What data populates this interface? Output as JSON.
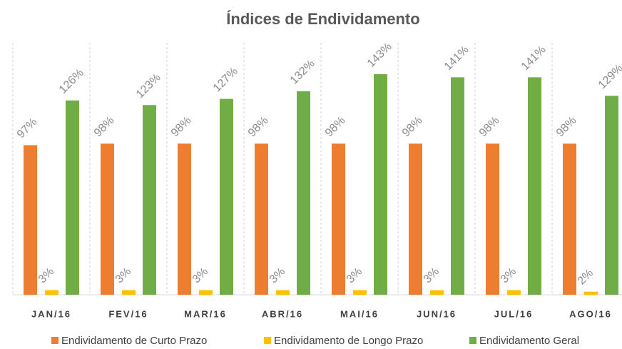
{
  "chart_data": {
    "type": "bar",
    "title": "Índices de Endividamento",
    "categories": [
      "JAN/16",
      "FEV/16",
      "MAR/16",
      "ABR/16",
      "MAI/16",
      "JUN/16",
      "JUL/16",
      "AGO/16"
    ],
    "series": [
      {
        "name": "Endividamento de Curto Prazo",
        "color": "#ed7d31",
        "values": [
          97,
          98,
          98,
          98,
          98,
          98,
          98,
          98
        ],
        "value_labels": [
          "97%",
          "98%",
          "98%",
          "98%",
          "98%",
          "98%",
          "98%",
          "98%"
        ]
      },
      {
        "name": "Endividamento de Longo Prazo",
        "color": "#ffc000",
        "values": [
          3,
          3,
          3,
          3,
          3,
          3,
          3,
          2
        ],
        "value_labels": [
          "3%",
          "3%",
          "3%",
          "3%",
          "3%",
          "3%",
          "3%",
          "2%"
        ]
      },
      {
        "name": "Endividamento Geral",
        "color": "#70ad47",
        "values": [
          126,
          123,
          127,
          132,
          143,
          141,
          141,
          129
        ],
        "value_labels": [
          "126%",
          "123%",
          "127%",
          "132%",
          "143%",
          "141%",
          "141%",
          "129%"
        ]
      }
    ],
    "legend": "bottom"
  }
}
